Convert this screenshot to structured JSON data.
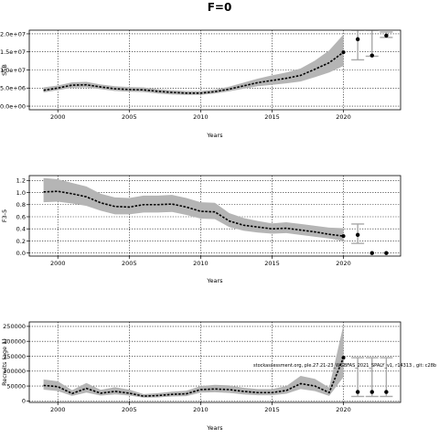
{
  "figure": {
    "title": "F=0",
    "watermark": "stockassessment.org, ple.27.21-23_WGBFAS_2021_SPALY_v1, r14313 , git: c28b"
  },
  "chart_data": [
    {
      "type": "line",
      "panel": "ssb",
      "ylabel": "SSB",
      "xlabel": "Years",
      "xlim": [
        1998,
        2024
      ],
      "ylim": [
        -1000000,
        21000000
      ],
      "xticks": [
        2000,
        2005,
        2010,
        2015,
        2020
      ],
      "yticks": [
        0,
        5000000,
        10000000,
        15000000,
        20000000
      ],
      "ytick_labels": [
        "0.0e+00",
        "5.0e+06",
        "1.0e+07",
        "1.5e+07",
        "2.0e+07"
      ],
      "grid": true,
      "series": [
        {
          "x": [
            1999,
            2000,
            2001,
            2002,
            2003,
            2004,
            2005,
            2006,
            2007,
            2008,
            2009,
            2010,
            2011,
            2012,
            2013,
            2014,
            2015,
            2016,
            2017,
            2018,
            2019,
            2020
          ],
          "y": [
            4400000,
            5000000,
            5800000,
            5900000,
            5300000,
            4800000,
            4600000,
            4500000,
            4100000,
            3800000,
            3600000,
            3600000,
            4000000,
            4700000,
            5600000,
            6500000,
            7100000,
            7700000,
            8500000,
            10200000,
            12000000,
            14900000
          ],
          "lower": [
            3800000,
            4400000,
            5100000,
            5200000,
            4700000,
            4200000,
            4000000,
            3900000,
            3500000,
            3200000,
            3100000,
            3100000,
            3500000,
            4100000,
            4800000,
            5500000,
            5900000,
            6300000,
            6800000,
            8000000,
            9300000,
            11100000
          ],
          "upper": [
            5200000,
            5700000,
            6600000,
            6700000,
            6000000,
            5500000,
            5300000,
            5200000,
            4700000,
            4400000,
            4200000,
            4200000,
            4600000,
            5400000,
            6500000,
            7600000,
            8500000,
            9300000,
            10400000,
            12600000,
            15400000,
            19800000
          ]
        }
      ],
      "forecast": [
        {
          "x": 2021,
          "y": 18500000,
          "lower": 12800000,
          "upper": 21000000
        },
        {
          "x": 2022,
          "y": 14000000,
          "lower": 13800000,
          "upper": 21000000
        },
        {
          "x": 2023,
          "y": 19500000,
          "lower": 19000000,
          "upper": 20500000
        }
      ]
    },
    {
      "type": "line",
      "panel": "f",
      "ylabel": "F3-5",
      "xlabel": "Years",
      "xlim": [
        1998,
        2024
      ],
      "ylim": [
        -0.05,
        1.28
      ],
      "xticks": [
        2000,
        2005,
        2010,
        2015,
        2020
      ],
      "yticks": [
        0,
        0.2,
        0.4,
        0.6,
        0.8,
        1.0,
        1.2
      ],
      "ytick_labels": [
        "0.0",
        "0.2",
        "0.4",
        "0.6",
        "0.8",
        "1.0",
        "1.2"
      ],
      "grid": true,
      "series": [
        {
          "x": [
            1999,
            2000,
            2001,
            2002,
            2003,
            2004,
            2005,
            2006,
            2007,
            2008,
            2009,
            2010,
            2011,
            2012,
            2013,
            2014,
            2015,
            2016,
            2017,
            2018,
            2019,
            2020
          ],
          "y": [
            1.01,
            1.02,
            0.98,
            0.93,
            0.83,
            0.77,
            0.76,
            0.8,
            0.8,
            0.81,
            0.76,
            0.69,
            0.68,
            0.53,
            0.46,
            0.43,
            0.4,
            0.41,
            0.38,
            0.35,
            0.31,
            0.28
          ],
          "lower": [
            0.84,
            0.85,
            0.82,
            0.78,
            0.7,
            0.64,
            0.64,
            0.67,
            0.67,
            0.68,
            0.63,
            0.57,
            0.56,
            0.43,
            0.37,
            0.34,
            0.32,
            0.33,
            0.3,
            0.27,
            0.24,
            0.2
          ],
          "upper": [
            1.24,
            1.22,
            1.16,
            1.1,
            0.98,
            0.92,
            0.91,
            0.95,
            0.95,
            0.96,
            0.91,
            0.84,
            0.83,
            0.66,
            0.58,
            0.53,
            0.49,
            0.51,
            0.48,
            0.45,
            0.42,
            0.41
          ]
        }
      ],
      "forecast": [
        {
          "x": 2021,
          "y": 0.3,
          "lower": 0.16,
          "upper": 0.48
        },
        {
          "x": 2022,
          "y": 0.0,
          "lower": 0.0,
          "upper": 0.0
        },
        {
          "x": 2023,
          "y": 0.0,
          "lower": 0.0,
          "upper": 0.0
        }
      ]
    },
    {
      "type": "line",
      "panel": "recruitment",
      "ylabel": "Recruits (age 1)",
      "xlabel": "Years",
      "xlim": [
        1998,
        2024
      ],
      "ylim": [
        -5000,
        265000
      ],
      "xticks": [
        2000,
        2005,
        2010,
        2015,
        2020
      ],
      "yticks": [
        0,
        50000,
        100000,
        150000,
        200000,
        250000
      ],
      "ytick_labels": [
        "0",
        "50000",
        "100000",
        "150000",
        "200000",
        "250000"
      ],
      "grid": true,
      "series": [
        {
          "x": [
            1999,
            2000,
            2001,
            2002,
            2003,
            2004,
            2005,
            2006,
            2007,
            2008,
            2009,
            2010,
            2011,
            2012,
            2013,
            2014,
            2015,
            2016,
            2017,
            2018,
            2019,
            2020
          ],
          "y": [
            52000,
            48000,
            25000,
            42000,
            26000,
            32000,
            26000,
            16000,
            18000,
            22000,
            24000,
            38000,
            40000,
            38000,
            32000,
            28000,
            28000,
            35000,
            58000,
            50000,
            28000,
            145000
          ],
          "lower": [
            38000,
            33000,
            17000,
            28000,
            18000,
            22000,
            18000,
            11000,
            12000,
            15000,
            16000,
            28000,
            29000,
            27000,
            22000,
            19000,
            19000,
            24000,
            40000,
            33000,
            17000,
            80000
          ],
          "upper": [
            72000,
            66000,
            36000,
            60000,
            37000,
            46000,
            38000,
            23000,
            26000,
            31000,
            34000,
            50000,
            54000,
            52000,
            44000,
            40000,
            40000,
            50000,
            84000,
            74000,
            45000,
            255000
          ]
        }
      ],
      "forecast": [
        {
          "x": 2021,
          "y": 30000,
          "lower": 15000,
          "upper": 145000
        },
        {
          "x": 2022,
          "y": 30000,
          "lower": 15000,
          "upper": 145000
        },
        {
          "x": 2023,
          "y": 30000,
          "lower": 15000,
          "upper": 145000
        }
      ]
    }
  ]
}
